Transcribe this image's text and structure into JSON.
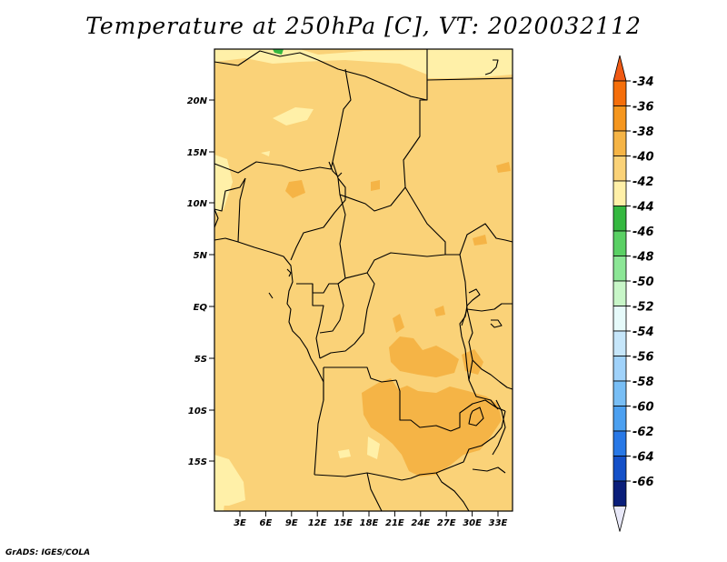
{
  "title": "Temperature at 250hPa [C], VT: 2020032112",
  "credit": "GrADS: IGES/COLA",
  "map": {
    "lat_ticks": [
      "20N",
      "15N",
      "10N",
      "5N",
      "EQ",
      "5S",
      "10S",
      "15S"
    ],
    "lon_ticks": [
      "3E",
      "6E",
      "9E",
      "12E",
      "15E",
      "18E",
      "21E",
      "24E",
      "27E",
      "30E",
      "33E"
    ]
  },
  "colorbar": {
    "labels": [
      "-34",
      "-36",
      "-38",
      "-40",
      "-42",
      "-44",
      "-46",
      "-48",
      "-50",
      "-52",
      "-54",
      "-56",
      "-58",
      "-60",
      "-62",
      "-64",
      "-66"
    ],
    "colors": {
      "top_arrow": "#f05a14",
      "bands": [
        "#f56e0a",
        "#f5961e",
        "#f5b446",
        "#fad278",
        "#fff0a8",
        "#35b840",
        "#5ad064",
        "#8ce696",
        "#c8f6c8",
        "#e6fafa",
        "#c6e6fa",
        "#a0d2fa",
        "#78bef5",
        "#4ca0f0",
        "#2878e6",
        "#1450c8",
        "#0a1e7a"
      ],
      "bottom_arrow": "#e8e8f8"
    }
  },
  "field_colors": {
    "base": "#fad278",
    "cool": "#fff0a8",
    "warm": "#f5b446",
    "green": "#35b840"
  }
}
